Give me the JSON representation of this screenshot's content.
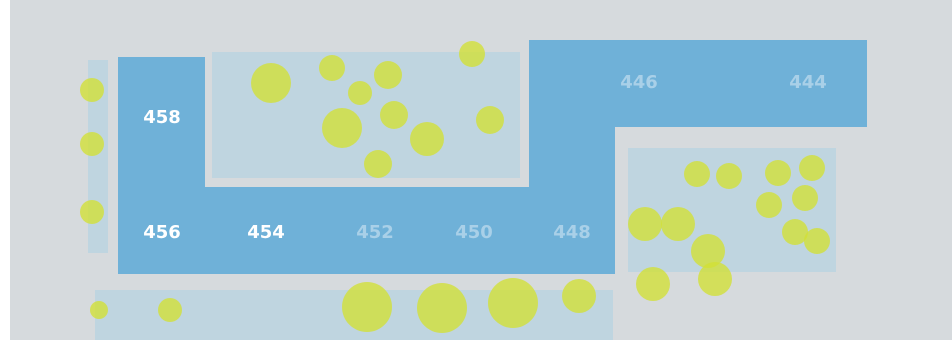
{
  "colors": {
    "background": "#d6dadd",
    "corridor": "#6fb1d8",
    "room_panel": "#bfd5e0",
    "tree": "#d2e034",
    "label_active": "#ffffff",
    "label_muted": "#a9d0e8"
  },
  "room_labels": [
    {
      "id": "458",
      "text": "458",
      "state": "active"
    },
    {
      "id": "456",
      "text": "456",
      "state": "active"
    },
    {
      "id": "454",
      "text": "454",
      "state": "active"
    },
    {
      "id": "452",
      "text": "452",
      "state": "muted"
    },
    {
      "id": "450",
      "text": "450",
      "state": "muted"
    },
    {
      "id": "448",
      "text": "448",
      "state": "muted"
    },
    {
      "id": "446",
      "text": "446",
      "state": "muted"
    },
    {
      "id": "444",
      "text": "444",
      "state": "muted"
    }
  ]
}
